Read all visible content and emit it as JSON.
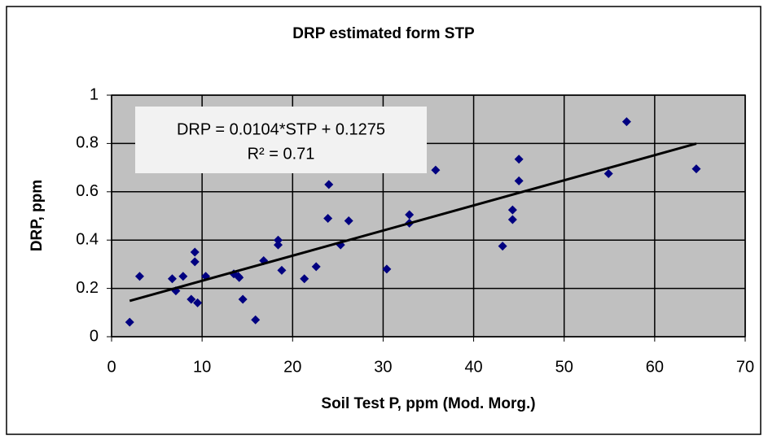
{
  "chart_data": {
    "type": "scatter",
    "title": "DRP estimated form STP",
    "x_label": "Soil Test P, ppm (Mod. Morg.)",
    "y_label": "DRP, ppm",
    "x": [
      2.0,
      3.1,
      6.7,
      7.1,
      7.9,
      8.8,
      9.2,
      9.2,
      9.5,
      10.4,
      13.5,
      14.0,
      14.1,
      14.5,
      15.9,
      16.8,
      18.4,
      18.4,
      18.8,
      21.3,
      22.6,
      23.9,
      24.0,
      25.3,
      26.2,
      30.4,
      32.9,
      32.9,
      35.8,
      43.2,
      44.3,
      44.3,
      45.0,
      45.0,
      54.9,
      56.9,
      64.6
    ],
    "values": [
      0.06,
      0.25,
      0.24,
      0.19,
      0.25,
      0.155,
      0.35,
      0.31,
      0.14,
      0.25,
      0.26,
      0.25,
      0.245,
      0.155,
      0.07,
      0.315,
      0.4,
      0.38,
      0.275,
      0.24,
      0.29,
      0.49,
      0.63,
      0.38,
      0.48,
      0.28,
      0.505,
      0.47,
      0.69,
      0.375,
      0.525,
      0.485,
      0.735,
      0.645,
      0.675,
      0.89,
      0.695
    ],
    "color": "#000080",
    "trendline": {
      "slope": 0.0104,
      "intercept": 0.1275,
      "color": "#000000",
      "label": "DRP = 0.0104*STP + 0.1275",
      "r2_label": "R² = 0.71"
    },
    "xlim": [
      0,
      70
    ],
    "xticks": [
      0,
      10,
      20,
      30,
      40,
      50,
      60,
      70
    ],
    "ylim": [
      0,
      1
    ],
    "yticks": [
      0,
      0.2,
      0.4,
      0.6,
      0.8,
      1
    ],
    "grid": true,
    "plot_background": "#c0c0c0"
  }
}
